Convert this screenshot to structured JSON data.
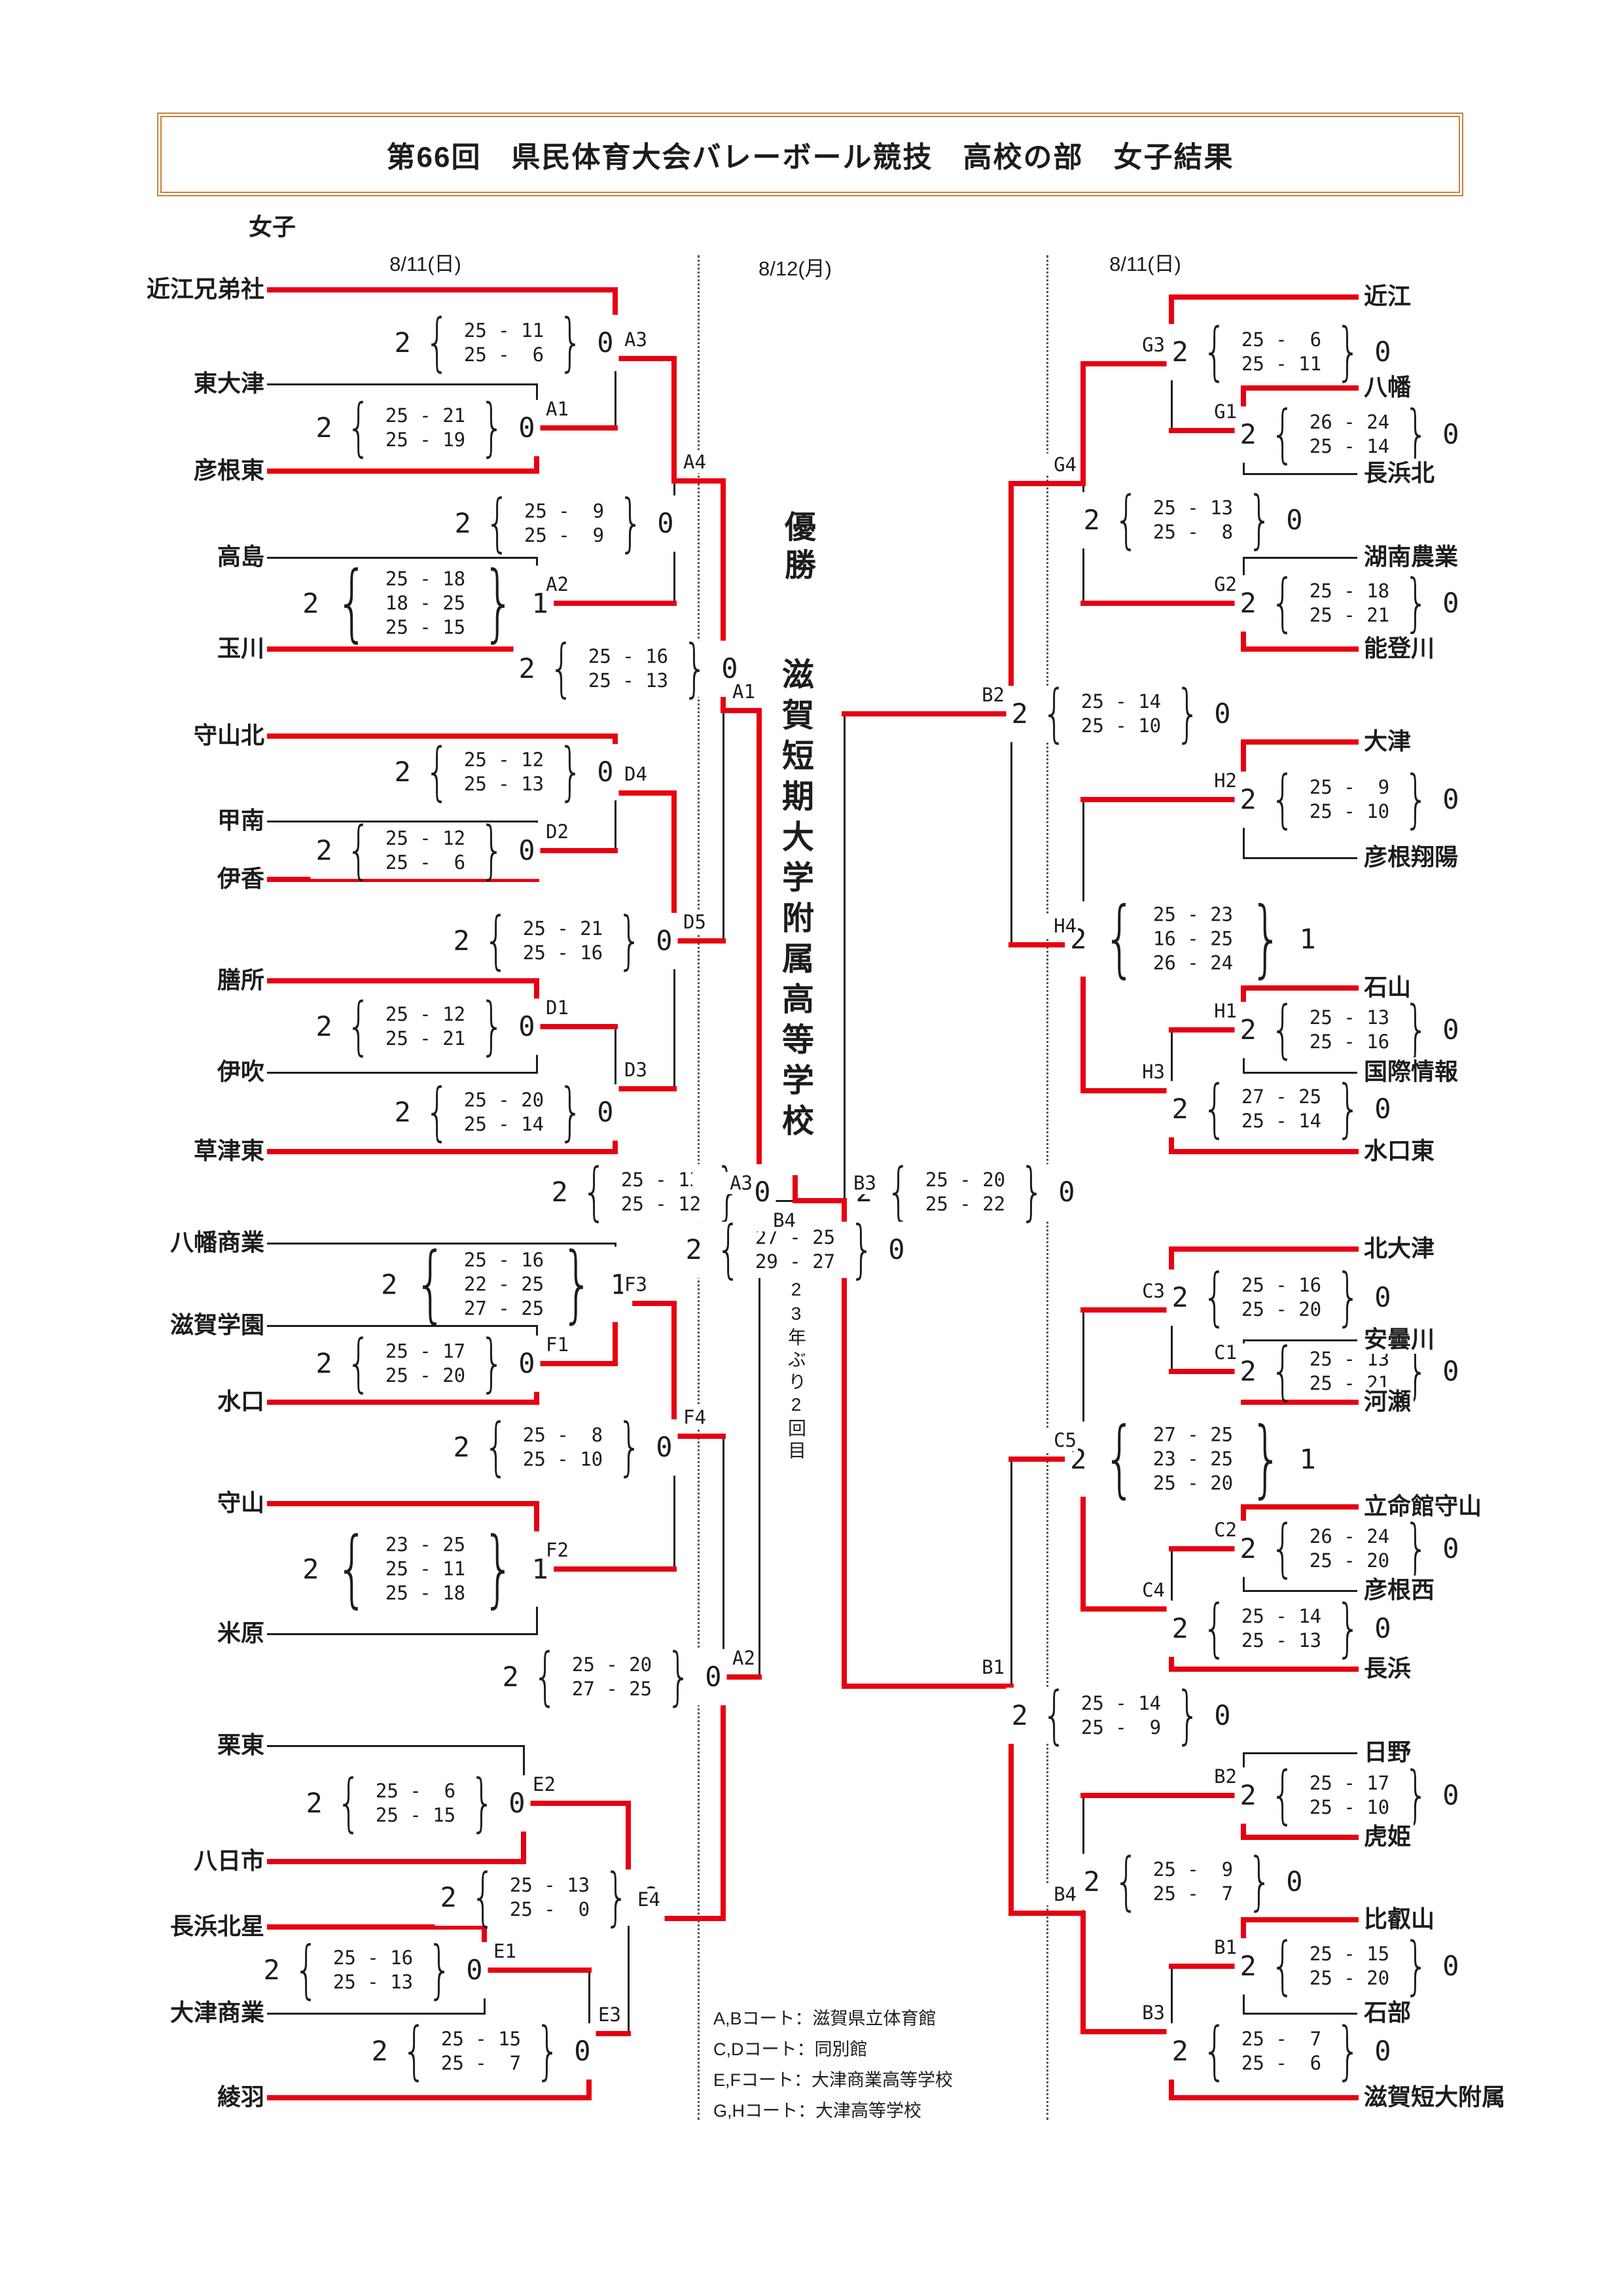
{
  "title": "第66回　県民体育大会バレーボール競技　高校の部　女子結果",
  "category_label": "女子",
  "dates": {
    "left": "8/11(日)",
    "center": "8/12(月)",
    "right": "8/11(日)"
  },
  "champion": {
    "heading": "優勝",
    "name": "滋賀短期大学附属高等学校",
    "note": "23年ぶり2回目"
  },
  "legend": [
    "A,Bコート：滋賀県立体育館",
    "C,Dコート：同別館",
    "E,Fコート：大津商業高等学校",
    "G,Hコート：大津高等学校"
  ],
  "colors": {
    "winner_path": "#e60012",
    "line": "#1c1c1c",
    "title_border": "#c8823c"
  },
  "teams": {
    "left": [
      {
        "id": "omikyodai",
        "name": "近江兄弟社"
      },
      {
        "id": "higashiotsu",
        "name": "東大津"
      },
      {
        "id": "hikonehigashi",
        "name": "彦根東"
      },
      {
        "id": "takashima",
        "name": "高島"
      },
      {
        "id": "tamagawa",
        "name": "玉川"
      },
      {
        "id": "moriyamakita",
        "name": "守山北"
      },
      {
        "id": "konan",
        "name": "甲南"
      },
      {
        "id": "ika",
        "name": "伊香"
      },
      {
        "id": "zeze",
        "name": "膳所"
      },
      {
        "id": "ibuki",
        "name": "伊吹"
      },
      {
        "id": "kusatsuhigashi",
        "name": "草津東"
      },
      {
        "id": "hachimansho",
        "name": "八幡商業"
      },
      {
        "id": "shigagakuen",
        "name": "滋賀学園"
      },
      {
        "id": "minakuchi",
        "name": "水口"
      },
      {
        "id": "moriyama",
        "name": "守山"
      },
      {
        "id": "maibara",
        "name": "米原"
      },
      {
        "id": "ritto",
        "name": "栗東"
      },
      {
        "id": "yokaichi",
        "name": "八日市"
      },
      {
        "id": "nagahamahokusei",
        "name": "長浜北星"
      },
      {
        "id": "otsusho",
        "name": "大津商業"
      },
      {
        "id": "ayaha",
        "name": "綾羽"
      }
    ],
    "right": [
      {
        "id": "omi",
        "name": "近江"
      },
      {
        "id": "hachiman",
        "name": "八幡"
      },
      {
        "id": "nagahamakita",
        "name": "長浜北"
      },
      {
        "id": "konannogyo",
        "name": "湖南農業"
      },
      {
        "id": "notogawa",
        "name": "能登川"
      },
      {
        "id": "otsu",
        "name": "大津"
      },
      {
        "id": "hikoneshoyo",
        "name": "彦根翔陽"
      },
      {
        "id": "ishiyama",
        "name": "石山"
      },
      {
        "id": "kokusaijoho",
        "name": "国際情報"
      },
      {
        "id": "minakuchihigashi",
        "name": "水口東"
      },
      {
        "id": "kitaotsu",
        "name": "北大津"
      },
      {
        "id": "adogawa",
        "name": "安曇川"
      },
      {
        "id": "kawase",
        "name": "河瀬"
      },
      {
        "id": "ritsumoriyama",
        "name": "立命館守山"
      },
      {
        "id": "hikonenishi",
        "name": "彦根西"
      },
      {
        "id": "nagahama",
        "name": "長浜"
      },
      {
        "id": "hino",
        "name": "日野"
      },
      {
        "id": "torahime",
        "name": "虎姫"
      },
      {
        "id": "hieizan",
        "name": "比叡山"
      },
      {
        "id": "ishibe",
        "name": "石部"
      },
      {
        "id": "shigatandai",
        "name": "滋賀短大附属"
      }
    ]
  },
  "matches": [
    {
      "id": "A1",
      "label": "A1",
      "top": "t:higashiotsu",
      "bottom": "t:hikonehigashi",
      "winner": "bottom",
      "score": {
        "win": "2",
        "lose": "0",
        "sets": [
          "25-21",
          "25-19"
        ]
      }
    },
    {
      "id": "A2",
      "label": "A2",
      "top": "t:takashima",
      "bottom": "t:tamagawa",
      "winner": "bottom",
      "score": {
        "win": "2",
        "lose": "1",
        "sets": [
          "25-18",
          "18-25",
          "25-15"
        ]
      }
    },
    {
      "id": "D2",
      "label": "D2",
      "top": "t:konan",
      "bottom": "t:ika",
      "winner": "bottom",
      "score": {
        "win": "2",
        "lose": "0",
        "sets": [
          "25-12",
          "25-6"
        ]
      }
    },
    {
      "id": "D1",
      "label": "D1",
      "top": "t:zeze",
      "bottom": "t:ibuki",
      "winner": "top",
      "score": {
        "win": "2",
        "lose": "0",
        "sets": [
          "25-12",
          "25-21"
        ]
      }
    },
    {
      "id": "F1",
      "label": "F1",
      "top": "t:shigagakuen",
      "bottom": "t:minakuchi",
      "winner": "bottom",
      "score": {
        "win": "2",
        "lose": "0",
        "sets": [
          "25-17",
          "25-20"
        ]
      }
    },
    {
      "id": "F2",
      "label": "F2",
      "top": "t:moriyama",
      "bottom": "t:maibara",
      "winner": "top",
      "score": {
        "win": "2",
        "lose": "1",
        "sets": [
          "23-25",
          "25-11",
          "25-18"
        ]
      }
    },
    {
      "id": "E2",
      "label": "E2",
      "top": "t:ritto",
      "bottom": "t:yokaichi",
      "winner": "bottom",
      "score": {
        "win": "2",
        "lose": "0",
        "sets": [
          "25-6",
          "25-15"
        ]
      }
    },
    {
      "id": "E1",
      "label": "E1",
      "top": "t:nagahamahokusei",
      "bottom": "t:otsusho",
      "winner": "top",
      "score": {
        "win": "2",
        "lose": "0",
        "sets": [
          "25-16",
          "25-13"
        ]
      }
    },
    {
      "id": "G1",
      "label": "G1",
      "top": "t:hachiman",
      "bottom": "t:nagahamakita",
      "winner": "top",
      "score": {
        "win": "2",
        "lose": "0",
        "sets": [
          "26-24",
          "25-14"
        ]
      }
    },
    {
      "id": "G2",
      "label": "G2",
      "top": "t:konannogyo",
      "bottom": "t:notogawa",
      "winner": "bottom",
      "score": {
        "win": "2",
        "lose": "0",
        "sets": [
          "25-18",
          "25-21"
        ]
      }
    },
    {
      "id": "H2",
      "label": "H2",
      "top": "t:otsu",
      "bottom": "t:hikoneshoyo",
      "winner": "top",
      "score": {
        "win": "2",
        "lose": "0",
        "sets": [
          "25-9",
          "25-10"
        ]
      }
    },
    {
      "id": "H1",
      "label": "H1",
      "top": "t:ishiyama",
      "bottom": "t:kokusaijoho",
      "winner": "top",
      "score": {
        "win": "2",
        "lose": "0",
        "sets": [
          "25-13",
          "25-16"
        ]
      }
    },
    {
      "id": "C1",
      "label": "C1",
      "top": "t:adogawa",
      "bottom": "t:kawase",
      "winner": "bottom",
      "score": {
        "win": "2",
        "lose": "0",
        "sets": [
          "25-13",
          "25-21"
        ]
      }
    },
    {
      "id": "C2",
      "label": "C2",
      "top": "t:ritsumoriyama",
      "bottom": "t:hikonenishi",
      "winner": "top",
      "score": {
        "win": "2",
        "lose": "0",
        "sets": [
          "26-24",
          "25-20"
        ]
      }
    },
    {
      "id": "B2",
      "label": "B2",
      "top": "t:hino",
      "bottom": "t:torahime",
      "winner": "bottom",
      "score": {
        "win": "2",
        "lose": "0",
        "sets": [
          "25-17",
          "25-10"
        ]
      }
    },
    {
      "id": "B1",
      "label": "B1",
      "top": "t:hieizan",
      "bottom": "t:ishibe",
      "winner": "top",
      "score": {
        "win": "2",
        "lose": "0",
        "sets": [
          "25-15",
          "25-20"
        ]
      }
    },
    {
      "id": "A3",
      "label": "A3",
      "top": "t:omikyodai",
      "bottom": "m:A1",
      "winner": "top",
      "score": {
        "win": "2",
        "lose": "0",
        "sets": [
          "25-11",
          "25-6"
        ]
      }
    },
    {
      "id": "D4",
      "label": "D4",
      "top": "t:moriyamakita",
      "bottom": "m:D2",
      "winner": "top",
      "score": {
        "win": "2",
        "lose": "0",
        "sets": [
          "25-12",
          "25-13"
        ]
      }
    },
    {
      "id": "D3",
      "label": "D3",
      "top": "m:D1",
      "bottom": "t:kusatsuhigashi",
      "winner": "bottom",
      "score": {
        "win": "2",
        "lose": "0",
        "sets": [
          "25-20",
          "25-14"
        ]
      }
    },
    {
      "id": "F3",
      "label": "F3",
      "top": "t:hachimansho",
      "bottom": "m:F1",
      "winner": "bottom",
      "score": {
        "win": "2",
        "lose": "1",
        "sets": [
          "25-16",
          "22-25",
          "27-25"
        ]
      }
    },
    {
      "id": "E3",
      "label": "E3",
      "top": "m:E1",
      "bottom": "t:ayaha",
      "winner": "bottom",
      "score": {
        "win": "2",
        "lose": "0",
        "sets": [
          "25-15",
          "25-7"
        ]
      }
    },
    {
      "id": "G3",
      "label": "G3",
      "top": "t:omi",
      "bottom": "m:G1",
      "winner": "top",
      "score": {
        "win": "2",
        "lose": "0",
        "sets": [
          "25-6",
          "25-11"
        ]
      }
    },
    {
      "id": "H3",
      "label": "H3",
      "top": "m:H1",
      "bottom": "t:minakuchihigashi",
      "winner": "bottom",
      "score": {
        "win": "2",
        "lose": "0",
        "sets": [
          "27-25",
          "25-14"
        ]
      }
    },
    {
      "id": "C3",
      "label": "C3",
      "top": "t:kitaotsu",
      "bottom": "m:C1",
      "winner": "top",
      "score": {
        "win": "2",
        "lose": "0",
        "sets": [
          "25-16",
          "25-20"
        ]
      }
    },
    {
      "id": "C4",
      "label": "C4",
      "top": "m:C2",
      "bottom": "t:nagahama",
      "winner": "bottom",
      "score": {
        "win": "2",
        "lose": "0",
        "sets": [
          "25-14",
          "25-13"
        ]
      }
    },
    {
      "id": "B3",
      "label": "B3",
      "top": "m:B1",
      "bottom": "t:shigatandai",
      "winner": "bottom",
      "score": {
        "win": "2",
        "lose": "0",
        "sets": [
          "25-7",
          "25-6"
        ]
      }
    },
    {
      "id": "A4",
      "label": "A4",
      "top": "m:A3",
      "bottom": "m:A2",
      "winner": "top",
      "score": {
        "win": "2",
        "lose": "0",
        "sets": [
          "25-9",
          "25-9"
        ]
      }
    },
    {
      "id": "D5",
      "label": "D5",
      "top": "m:D4",
      "bottom": "m:D3",
      "winner": "top",
      "score": {
        "win": "2",
        "lose": "0",
        "sets": [
          "25-21",
          "25-16"
        ]
      }
    },
    {
      "id": "F4",
      "label": "F4",
      "top": "m:F3",
      "bottom": "m:F2",
      "winner": "top",
      "score": {
        "win": "2",
        "lose": "0",
        "sets": [
          "25-8",
          "25-10"
        ]
      }
    },
    {
      "id": "E4",
      "label": "E4",
      "top": "m:E2",
      "bottom": "m:E3",
      "winner": "top",
      "score": {
        "win": "2",
        "lose": "0",
        "sets": [
          "25-13",
          "25-0"
        ]
      }
    },
    {
      "id": "G4",
      "label": "G4",
      "top": "m:G3",
      "bottom": "m:G2",
      "winner": "top",
      "score": {
        "win": "2",
        "lose": "0",
        "sets": [
          "25-13",
          "25-8"
        ]
      }
    },
    {
      "id": "H4",
      "label": "H4",
      "top": "m:H2",
      "bottom": "m:H3",
      "winner": "bottom",
      "score": {
        "win": "2",
        "lose": "1",
        "sets": [
          "25-23",
          "16-25",
          "26-24"
        ]
      }
    },
    {
      "id": "C5",
      "label": "C5",
      "top": "m:C3",
      "bottom": "m:C4",
      "winner": "bottom",
      "score": {
        "win": "2",
        "lose": "1",
        "sets": [
          "27-25",
          "23-25",
          "25-20"
        ]
      }
    },
    {
      "id": "B4",
      "label": "B4",
      "top": "m:B2",
      "bottom": "m:B3",
      "winner": "bottom",
      "score": {
        "win": "2",
        "lose": "0",
        "sets": [
          "25-9",
          "25-7"
        ]
      }
    },
    {
      "id": "A1q",
      "label": "A1",
      "top": "m:A4",
      "bottom": "m:D5",
      "winner": "top",
      "score": {
        "win": "2",
        "lose": "0",
        "sets": [
          "25-16",
          "25-13"
        ]
      }
    },
    {
      "id": "A2q",
      "label": "A2",
      "top": "m:F4",
      "bottom": "m:E4",
      "winner": "bottom",
      "score": {
        "win": "2",
        "lose": "0",
        "sets": [
          "25-20",
          "27-25"
        ]
      }
    },
    {
      "id": "B2q",
      "label": "B2",
      "top": "m:G4",
      "bottom": "m:H4",
      "winner": "top",
      "score": {
        "win": "2",
        "lose": "0",
        "sets": [
          "25-14",
          "25-10"
        ]
      }
    },
    {
      "id": "B1q",
      "label": "B1",
      "top": "m:C5",
      "bottom": "m:B4",
      "winner": "bottom",
      "score": {
        "win": "2",
        "lose": "0",
        "sets": [
          "25-14",
          "25-9"
        ]
      }
    },
    {
      "id": "A3s",
      "label": "A3",
      "top": "m:A1q",
      "bottom": "m:A2q",
      "winner": "top",
      "score": {
        "win": "2",
        "lose": "0",
        "sets": [
          "25-13",
          "25-12"
        ]
      }
    },
    {
      "id": "B3s",
      "label": "B3",
      "top": "m:B2q",
      "bottom": "m:B1q",
      "winner": "bottom",
      "score": {
        "win": "2",
        "lose": "0",
        "sets": [
          "25-20",
          "25-22"
        ]
      }
    },
    {
      "id": "FIN",
      "label": "B4",
      "top": "m:A3s",
      "bottom": "m:B3s",
      "winner": "bottom",
      "score": {
        "win": "2",
        "lose": "0",
        "sets": [
          "27-25",
          "29-27"
        ]
      }
    }
  ]
}
